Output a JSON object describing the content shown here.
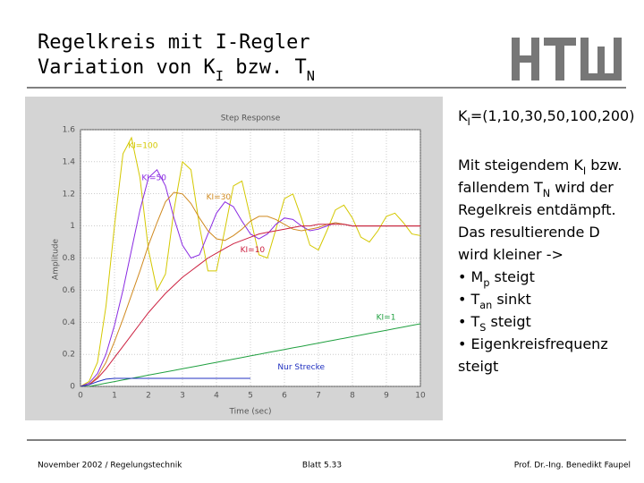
{
  "slide": {
    "title": [
      [
        "Regelkreis mit I-Regler"
      ],
      [
        "Variation von K",
        "I",
        " bzw. T",
        "N"
      ]
    ],
    "header": [
      "K",
      "I",
      "=(1,10,30,50,100,200)"
    ],
    "bullets": [
      [
        "Mit steigendem K",
        "I",
        " bzw."
      ],
      [
        "fallendem T",
        "N",
        " wird der"
      ],
      [
        "Regelkreis entdämpft."
      ],
      [
        "Das resultierende D"
      ],
      [
        "wird kleiner ->"
      ],
      [
        "• M",
        "p",
        " steigt"
      ],
      [
        "• T",
        "an",
        " sinkt"
      ],
      [
        "• T",
        "S",
        " steigt"
      ],
      [
        "• Eigenkreisfrequenz"
      ],
      [
        "   steigt"
      ]
    ],
    "footer": {
      "left": "November 2002 / Regelungstechnik",
      "center": "Blatt 5.33",
      "right": "Prof. Dr.-Ing. Benedikt Faupel"
    }
  },
  "chart_data": {
    "type": "line",
    "title": "Step Response",
    "xlabel": "Time (sec)",
    "ylabel": "Amplitude",
    "x": [
      0,
      0.25,
      0.5,
      0.75,
      1,
      1.25,
      1.5,
      1.75,
      2,
      2.25,
      2.5,
      2.75,
      3,
      3.25,
      3.5,
      3.75,
      4,
      4.25,
      4.5,
      4.75,
      5,
      5.25,
      5.5,
      5.75,
      6,
      6.25,
      6.5,
      6.75,
      7,
      7.25,
      7.5,
      7.75,
      8,
      8.25,
      8.5,
      8.75,
      9,
      9.25,
      9.5,
      9.75,
      10
    ],
    "xlim": [
      0,
      10
    ],
    "xticks": [
      0,
      1,
      2,
      3,
      4,
      5,
      6,
      7,
      8,
      9,
      10
    ],
    "ylim": [
      0,
      1.6
    ],
    "yticks": [
      0,
      0.2,
      0.4,
      0.6,
      0.8,
      1,
      1.2,
      1.4,
      1.6
    ],
    "grid": true,
    "series": [
      {
        "name": "KI=100",
        "color": "#d4c800",
        "values": [
          0,
          0.03,
          0.15,
          0.5,
          1.0,
          1.45,
          1.55,
          1.3,
          0.85,
          0.6,
          0.7,
          1.1,
          1.4,
          1.35,
          1.0,
          0.72,
          0.72,
          0.98,
          1.25,
          1.28,
          1.05,
          0.82,
          0.8,
          0.98,
          1.17,
          1.2,
          1.05,
          0.88,
          0.85,
          0.97,
          1.1,
          1.13,
          1.05,
          0.93,
          0.9,
          0.97,
          1.06,
          1.08,
          1.02,
          0.95,
          0.94
        ]
      },
      {
        "name": "KI=50",
        "color": "#8a2be2",
        "values": [
          0,
          0.02,
          0.08,
          0.2,
          0.38,
          0.6,
          0.85,
          1.1,
          1.3,
          1.35,
          1.25,
          1.05,
          0.88,
          0.8,
          0.82,
          0.95,
          1.08,
          1.15,
          1.12,
          1.03,
          0.95,
          0.92,
          0.95,
          1.01,
          1.05,
          1.04,
          1,
          0.97,
          0.98,
          1,
          1.02,
          1.01,
          1,
          1,
          1,
          1,
          1,
          1,
          1,
          1,
          1
        ]
      },
      {
        "name": "KI=30",
        "color": "#d08a20",
        "values": [
          0,
          0.01,
          0.06,
          0.15,
          0.28,
          0.42,
          0.57,
          0.72,
          0.88,
          1.02,
          1.15,
          1.21,
          1.2,
          1.14,
          1.05,
          0.97,
          0.92,
          0.91,
          0.94,
          0.98,
          1.03,
          1.06,
          1.06,
          1.04,
          1.01,
          0.98,
          0.97,
          0.98,
          0.99,
          1.01,
          1.02,
          1.01,
          1,
          1,
          1,
          1,
          1,
          1,
          1,
          1,
          1
        ]
      },
      {
        "name": "KI=10",
        "color": "#cc2040",
        "values": [
          0,
          0.01,
          0.05,
          0.11,
          0.18,
          0.25,
          0.32,
          0.39,
          0.46,
          0.52,
          0.58,
          0.63,
          0.68,
          0.72,
          0.76,
          0.8,
          0.83,
          0.86,
          0.89,
          0.91,
          0.93,
          0.95,
          0.96,
          0.97,
          0.98,
          0.99,
          1,
          1,
          1.01,
          1.01,
          1.01,
          1.01,
          1,
          1,
          1,
          1,
          1,
          1,
          1,
          1,
          1
        ]
      },
      {
        "name": "KI=1",
        "color": "#20a040",
        "values": [
          0,
          0,
          0.01,
          0.02,
          0.03,
          0.04,
          0.05,
          0.06,
          0.07,
          0.08,
          0.09,
          0.1,
          0.11,
          0.12,
          0.13,
          0.14,
          0.15,
          0.16,
          0.17,
          0.18,
          0.19,
          0.2,
          0.21,
          0.22,
          0.23,
          0.24,
          0.25,
          0.26,
          0.27,
          0.28,
          0.29,
          0.3,
          0.31,
          0.32,
          0.33,
          0.34,
          0.35,
          0.36,
          0.37,
          0.38,
          0.39
        ]
      },
      {
        "name": "Nur Strecke",
        "color": "#2030c0",
        "values": [
          0,
          0.01,
          0.03,
          0.045,
          0.05,
          0.05,
          0.05,
          0.05,
          0.05,
          0.05,
          0.05,
          0.05,
          0.05,
          0.05,
          0.05,
          0.05,
          0.05,
          0.05,
          0.05,
          0.05,
          0.05,
          null,
          null,
          null,
          null,
          null,
          null,
          null,
          null,
          null,
          null,
          null,
          null,
          null,
          null,
          null,
          null,
          null,
          null,
          null,
          null
        ]
      }
    ]
  }
}
